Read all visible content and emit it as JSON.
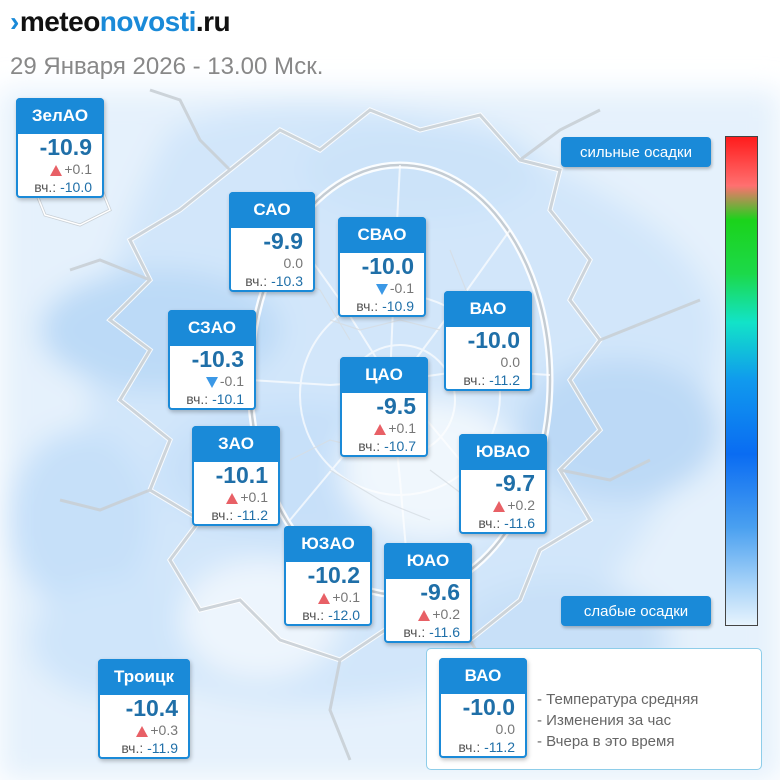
{
  "header": {
    "logo_mark": "›",
    "logo_part1": "meteo",
    "logo_part2": "novosti",
    "logo_part3": ".ru",
    "subtitle": "29 Января 2026 - 13.00 Мск."
  },
  "labels": {
    "yesterday_prefix": "вч.:"
  },
  "districts": [
    {
      "name": "ЗелАО",
      "temp": "-10.9",
      "change": "+0.1",
      "trend": "up",
      "yesterday": "-10.0"
    },
    {
      "name": "САО",
      "temp": "-9.9",
      "change": "0.0",
      "trend": "none",
      "yesterday": "-10.3"
    },
    {
      "name": "СВАО",
      "temp": "-10.0",
      "change": "-0.1",
      "trend": "down",
      "yesterday": "-10.9"
    },
    {
      "name": "ВАО",
      "temp": "-10.0",
      "change": "0.0",
      "trend": "none",
      "yesterday": "-11.2"
    },
    {
      "name": "СЗАО",
      "temp": "-10.3",
      "change": "-0.1",
      "trend": "down",
      "yesterday": "-10.1"
    },
    {
      "name": "ЦАО",
      "temp": "-9.5",
      "change": "+0.1",
      "trend": "up",
      "yesterday": "-10.7"
    },
    {
      "name": "ЗАО",
      "temp": "-10.1",
      "change": "+0.1",
      "trend": "up",
      "yesterday": "-11.2"
    },
    {
      "name": "ЮВАО",
      "temp": "-9.7",
      "change": "+0.2",
      "trend": "up",
      "yesterday": "-11.6"
    },
    {
      "name": "ЮЗАО",
      "temp": "-10.2",
      "change": "+0.1",
      "trend": "up",
      "yesterday": "-12.0"
    },
    {
      "name": "ЮАО",
      "temp": "-9.6",
      "change": "+0.2",
      "trend": "up",
      "yesterday": "-11.6"
    },
    {
      "name": "Троицк",
      "temp": "-10.4",
      "change": "+0.3",
      "trend": "up",
      "yesterday": "-11.9"
    }
  ],
  "scale": {
    "top_label": "сильные осадки",
    "bottom_label": "слабые осадки",
    "colors": [
      "#ff1c1c",
      "#1bd31b",
      "#12e3c8",
      "#1099ee",
      "#e6f3fd"
    ]
  },
  "legend": {
    "sample": {
      "name": "ВАО",
      "temp": "-10.0",
      "change": "0.0",
      "yesterday": "-11.2"
    },
    "lines": [
      "- Температура средняя",
      "- Изменения за час",
      "- Вчера в это время"
    ]
  },
  "colors": {
    "accent": "#1a8ad8",
    "temp_text": "#1f6fa8",
    "trend_up": "#e86066",
    "trend_down": "#3b98e6"
  }
}
